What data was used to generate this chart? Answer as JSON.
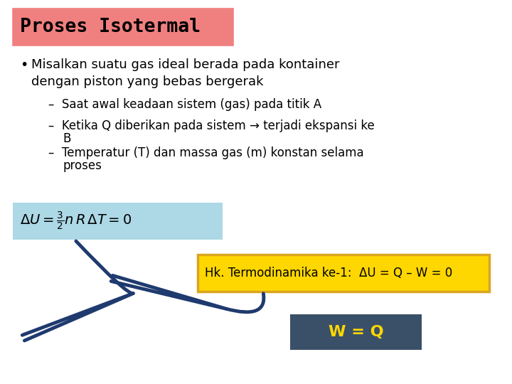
{
  "title": "Proses Isotermal",
  "title_bg": "#F08080",
  "title_color": "#000000",
  "title_fontsize": 19,
  "bg_color": "#FFFFFF",
  "bullet_main": "Misalkan suatu gas ideal berada pada kontainer\ndengan piston yang bebas bergerak",
  "sub1": "Saat awal keadaan sistem (gas) pada titik A",
  "sub2": "Ketika Q diberikan pada sistem → terjadi ekspansi ke\n    B",
  "sub3": "Temperatur (T) dan massa gas (m) konstan selama\n    proses",
  "formula_bg": "#ADD8E6",
  "hk_bg": "#FFD700",
  "hk_border": "#DAA520",
  "hk_text": "Hk. Termodinamika ke-1:  ΔU = Q – W = 0",
  "wq_bg": "#3A5068",
  "wq_text": "W = Q",
  "wq_color": "#FFD700",
  "arrow_color": "#1F3A6E",
  "text_color": "#000000"
}
